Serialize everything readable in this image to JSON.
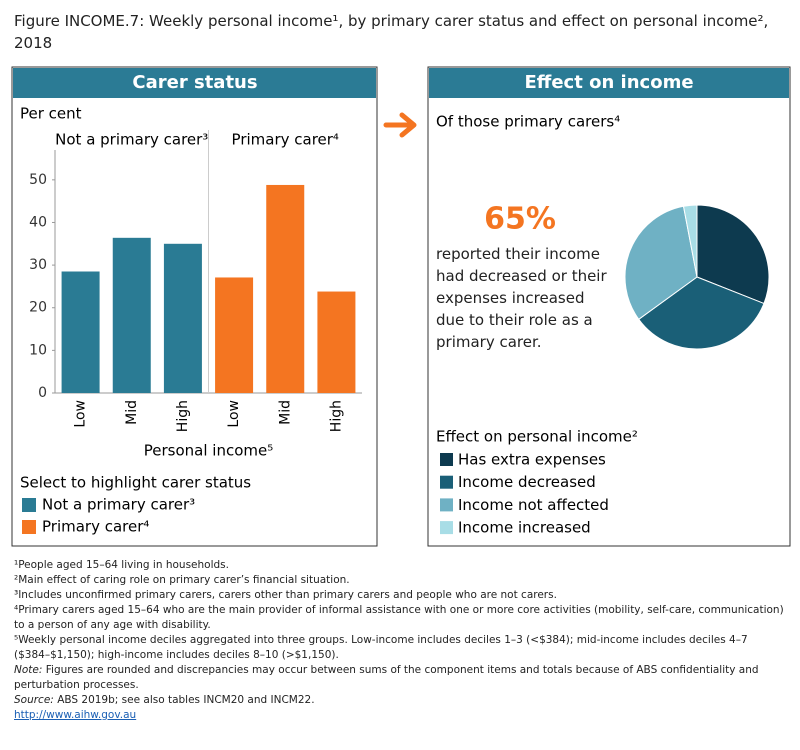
{
  "title": "Figure INCOME.7: Weekly personal income¹, by primary carer status and effect on personal income², 2018",
  "chart_data": [
    {
      "type": "bar",
      "panel_title": "Carer status",
      "y_label": "Per cent",
      "x_label": "Personal income⁵",
      "groups": [
        "Not a primary carer³",
        "Primary carer⁴"
      ],
      "categories": [
        "Low",
        "Mid",
        "High",
        "Low",
        "Mid",
        "High"
      ],
      "series": [
        {
          "name": "Not a primary carer³",
          "color": "#2a7b94",
          "values": [
            28.5,
            36.4,
            35.0,
            null,
            null,
            null
          ]
        },
        {
          "name": "Primary carer⁴",
          "color": "#f47521",
          "values": [
            null,
            null,
            null,
            27.1,
            48.8,
            23.8
          ]
        }
      ],
      "ylim": [
        0,
        57
      ],
      "yticks": [
        0,
        10,
        20,
        30,
        40,
        50
      ],
      "legend_title": "Select to highlight carer status"
    },
    {
      "type": "pie",
      "panel_title": "Effect on income",
      "subtitle": "Of those primary carers⁴",
      "highlight": "65%",
      "description": "reported their income had decreased or their expenses increased due to their role as a primary carer.",
      "categories": [
        "Has extra expenses",
        "Income decreased",
        "Income not affected",
        "Income increased"
      ],
      "values": [
        31,
        34,
        32,
        3
      ],
      "colors": [
        "#0d3a4f",
        "#1a5f77",
        "#6fb1c4",
        "#a8dde6"
      ],
      "legend_title": "Effect on personal income²"
    }
  ],
  "footnotes": [
    "¹People aged 15–64 living in households.",
    "²Main effect of caring role on primary carer’s financial situation.",
    "³Includes unconfirmed primary carers, carers other than primary carers and people who are not carers.",
    "⁴Primary carers aged 15–64 who are the main provider of informal assistance with one or more core activities (mobility, self-care, communication) to a person of any age with disability.",
    "⁵Weekly personal income deciles aggregated into three groups. Low-income includes deciles 1–3 (<$384); mid-income includes deciles 4–7 ($384–$1,150); high-income includes deciles 8–10 (>$1,150)."
  ],
  "note_label": "Note:",
  "note": "Figures are rounded and discrepancies may occur between sums of the component items and totals because of ABS confidentiality and perturbation processes.",
  "source_label": "Source:",
  "source": "ABS 2019b; see also tables INCM20 and INCM22.",
  "url": "http://www.aihw.gov.au"
}
